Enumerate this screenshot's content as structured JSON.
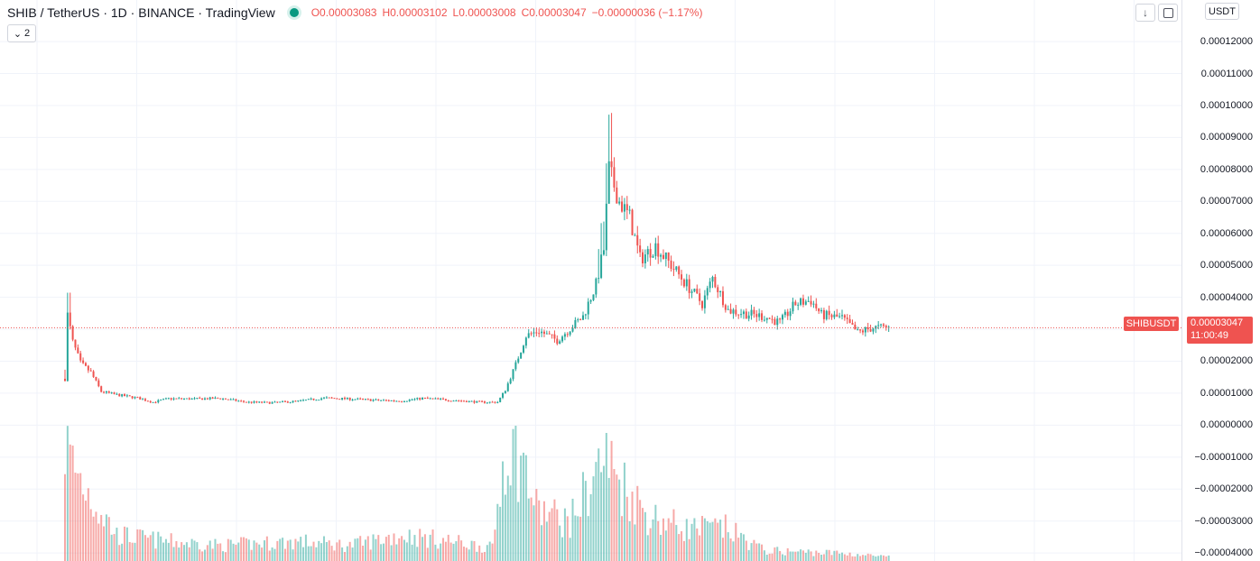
{
  "header": {
    "symbol": "SHIB / TetherUS · 1D · BINANCE · TradingView",
    "open": "O0.00003083",
    "high": "H0.00003102",
    "low": "L0.00003008",
    "close": "C0.00003047",
    "change": "−0.00000036 (−1.17%)",
    "collapse_count": "2",
    "currency": "USDT"
  },
  "price_tag": {
    "symbol": "SHIBUSDT",
    "price": "0.00003047",
    "countdown": "11:00:49"
  },
  "colors": {
    "up": "#26a69a",
    "down": "#ef5350",
    "grid": "#f0f3fa",
    "axis_text": "#131722"
  },
  "chart_data": {
    "type": "candlestick",
    "symbol": "SHIBUSDT",
    "interval": "1D",
    "y_ticks": [
      "0.00012000",
      "0.00011000",
      "0.00010000",
      "0.00009000",
      "0.00008000",
      "0.00007000",
      "0.00006000",
      "0.00005000",
      "0.00004000",
      "0.00003000",
      "0.00002000",
      "0.00001000",
      "0.00000000",
      "−0.00001000",
      "−0.00002000",
      "−0.00003000",
      "−0.00004000"
    ],
    "y_tick_values": [
      0.00012,
      0.00011,
      0.0001,
      9e-05,
      8e-05,
      7e-05,
      6e-05,
      5e-05,
      4e-05,
      3e-05,
      2e-05,
      1e-05,
      0,
      -1e-05,
      -2e-05,
      -3e-05,
      -4e-05
    ],
    "ylim": [
      -4.25e-05,
      0.000133
    ],
    "last_close": 3.047e-05,
    "grid": true,
    "price_keyframes": [
      [
        0,
        1.45e-05
      ],
      [
        1,
        3.45e-05
      ],
      [
        3,
        2.6e-05
      ],
      [
        6,
        1.95e-05
      ],
      [
        10,
        1.65e-05
      ],
      [
        14,
        1.05e-05
      ],
      [
        20,
        9.5e-06
      ],
      [
        28,
        8.5e-06
      ],
      [
        34,
        7.2e-06
      ],
      [
        40,
        8.3e-06
      ],
      [
        50,
        8.2e-06
      ],
      [
        60,
        8.4e-06
      ],
      [
        70,
        7.2e-06
      ],
      [
        80,
        7e-06
      ],
      [
        90,
        7.5e-06
      ],
      [
        100,
        8.5e-06
      ],
      [
        110,
        8.2e-06
      ],
      [
        120,
        7.8e-06
      ],
      [
        130,
        7.6e-06
      ],
      [
        138,
        8.4e-06
      ],
      [
        150,
        7.8e-06
      ],
      [
        160,
        7.2e-06
      ],
      [
        167,
        7.2e-06
      ],
      [
        170,
        1.1e-05
      ],
      [
        174,
        1.9e-05
      ],
      [
        178,
        2.8e-05
      ],
      [
        183,
        2.95e-05
      ],
      [
        190,
        2.65e-05
      ],
      [
        196,
        3.1e-05
      ],
      [
        200,
        3.4e-05
      ],
      [
        205,
        4.4e-05
      ],
      [
        208,
        5.5e-05
      ],
      [
        210,
        8e-05
      ],
      [
        214,
        7e-05
      ],
      [
        218,
        6.5e-05
      ],
      [
        222,
        5.2e-05
      ],
      [
        228,
        5.6e-05
      ],
      [
        234,
        5e-05
      ],
      [
        240,
        4.4e-05
      ],
      [
        246,
        3.8e-05
      ],
      [
        250,
        4.6e-05
      ],
      [
        256,
        3.6e-05
      ],
      [
        262,
        3.5e-05
      ],
      [
        270,
        3.4e-05
      ],
      [
        276,
        3.2e-05
      ],
      [
        282,
        3.8e-05
      ],
      [
        288,
        3.9e-05
      ],
      [
        292,
        3.45e-05
      ],
      [
        300,
        3.35e-05
      ],
      [
        306,
        2.9e-05
      ],
      [
        312,
        3.05e-05
      ],
      [
        318,
        3.05e-05
      ]
    ],
    "volume_keyframes": [
      [
        0,
        0.9
      ],
      [
        4,
        0.7
      ],
      [
        10,
        0.5
      ],
      [
        20,
        0.2
      ],
      [
        40,
        0.15
      ],
      [
        60,
        0.12
      ],
      [
        90,
        0.15
      ],
      [
        110,
        0.12
      ],
      [
        130,
        0.2
      ],
      [
        150,
        0.15
      ],
      [
        165,
        0.1
      ],
      [
        170,
        0.9
      ],
      [
        176,
        0.8
      ],
      [
        182,
        0.4
      ],
      [
        195,
        0.3
      ],
      [
        208,
        0.8
      ],
      [
        215,
        0.6
      ],
      [
        225,
        0.35
      ],
      [
        240,
        0.25
      ],
      [
        255,
        0.25
      ],
      [
        270,
        0.08
      ],
      [
        300,
        0.06
      ],
      [
        318,
        0.03
      ]
    ]
  }
}
